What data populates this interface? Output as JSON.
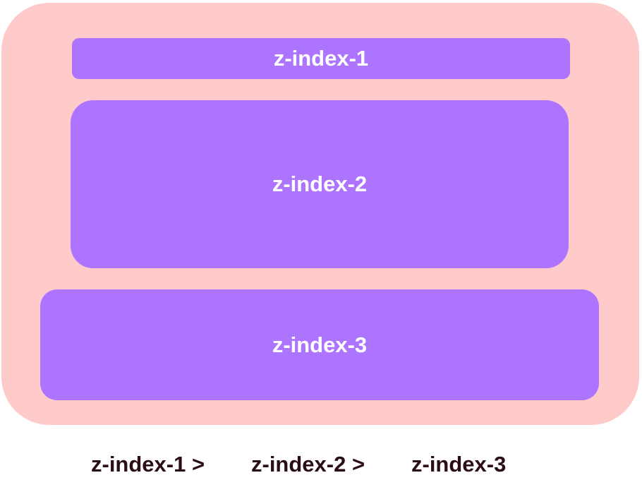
{
  "layers": [
    {
      "label": "z-index-1"
    },
    {
      "label": "z-index-2"
    },
    {
      "label": "z-index-3"
    }
  ],
  "order": [
    "z-index-1 >",
    "z-index-2 >",
    "z-index-3"
  ],
  "colors": {
    "container": "#ffcaca",
    "layer": "#ad74ff",
    "layer_text": "#ffffff",
    "order_text": "#2a0d19"
  }
}
